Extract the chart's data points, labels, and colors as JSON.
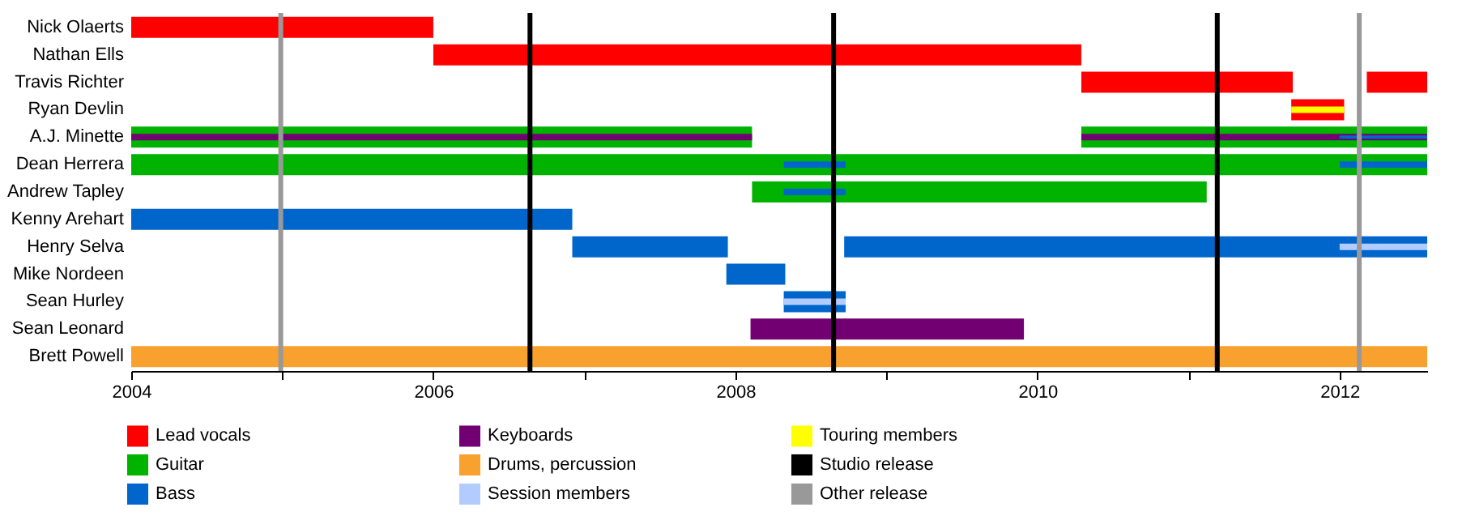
{
  "chart_data": {
    "type": "bar",
    "orientation": "horizontal",
    "categories": [
      "Nick Olaerts",
      "Nathan Ells",
      "Travis Richter",
      "Ryan Devlin",
      "A.J. Minette",
      "Dean Herrera",
      "Andrew Tapley",
      "Kenny Arehart",
      "Henry Selva",
      "Mike Nordeen",
      "Sean Hurley",
      "Sean Leonard",
      "Brett Powell"
    ],
    "series": [
      {
        "name": "Lead vocals",
        "color": "#ff0000",
        "base": [
          2004,
          2006.0,
          2010.29,
          2011.68,
          null,
          null,
          null,
          null,
          null,
          null,
          null,
          null,
          null
        ],
        "values": [
          2.0,
          4.29,
          1.4,
          0.35,
          null,
          null,
          null,
          null,
          null,
          null,
          null,
          null,
          null
        ]
      },
      {
        "color": "#ff0000",
        "base": [
          null,
          null,
          2012.18,
          null,
          null,
          null,
          null,
          null,
          null,
          null,
          null,
          null,
          null
        ],
        "values": [
          null,
          null,
          0.4,
          null,
          null,
          null,
          null,
          null,
          null,
          null,
          null,
          null,
          null
        ]
      },
      {
        "name": "Guitar",
        "color": "#00b300",
        "base": [
          null,
          null,
          null,
          null,
          2004,
          2004,
          2008.11,
          null,
          null,
          null,
          null,
          null,
          null
        ],
        "values": [
          null,
          null,
          null,
          null,
          4.11,
          8.58,
          3.01,
          null,
          null,
          null,
          null,
          null,
          null
        ]
      },
      {
        "color": "#00b300",
        "base": [
          null,
          null,
          null,
          null,
          2010.29,
          null,
          null,
          null,
          null,
          null,
          null,
          null,
          null
        ],
        "values": [
          null,
          null,
          null,
          null,
          2.29,
          null,
          null,
          null,
          null,
          null,
          null,
          null,
          null
        ]
      },
      {
        "name": "Bass",
        "color": "#0066cc",
        "base": [
          null,
          null,
          null,
          null,
          null,
          2008.32,
          2008.32,
          2004,
          2006.92,
          2007.94,
          2008.32,
          null,
          null
        ],
        "values": [
          null,
          null,
          null,
          null,
          null,
          0.41,
          0.41,
          2.92,
          1.03,
          0.39,
          0.41,
          null,
          null
        ]
      },
      {
        "color": "#0066cc",
        "base": [
          null,
          null,
          null,
          null,
          2012.0,
          2012.0,
          null,
          null,
          2008.72,
          null,
          null,
          null,
          null
        ],
        "values": [
          null,
          null,
          null,
          null,
          0.58,
          0.58,
          null,
          null,
          3.86,
          null,
          null,
          null,
          null
        ]
      },
      {
        "name": "Keyboards",
        "color": "#730073",
        "base": [
          null,
          null,
          null,
          null,
          2004,
          null,
          null,
          null,
          null,
          null,
          null,
          2008.1,
          null
        ],
        "values": [
          null,
          null,
          null,
          null,
          4.11,
          null,
          null,
          null,
          null,
          null,
          null,
          1.81,
          null
        ]
      },
      {
        "color": "#730073",
        "base": [
          null,
          null,
          null,
          null,
          2010.29,
          null,
          null,
          null,
          null,
          null,
          null,
          null,
          null
        ],
        "values": [
          null,
          null,
          null,
          null,
          2.29,
          null,
          null,
          null,
          null,
          null,
          null,
          null,
          null
        ]
      },
      {
        "name": "Drums, percussion",
        "color": "#f9a12e",
        "base": [
          null,
          null,
          null,
          null,
          null,
          null,
          null,
          null,
          null,
          null,
          null,
          null,
          2004
        ],
        "values": [
          null,
          null,
          null,
          null,
          null,
          null,
          null,
          null,
          null,
          null,
          null,
          null,
          8.58
        ]
      },
      {
        "name": "Session members",
        "color": "#b3ccff",
        "base": [
          null,
          null,
          null,
          null,
          null,
          null,
          null,
          null,
          2012.0,
          null,
          2008.32,
          null,
          null
        ],
        "values": [
          null,
          null,
          null,
          null,
          null,
          null,
          null,
          null,
          0.58,
          null,
          0.41,
          null,
          null
        ]
      },
      {
        "name": "Touring members",
        "color": "#ffff00",
        "base": [
          null,
          null,
          null,
          2011.68,
          null,
          null,
          null,
          null,
          null,
          null,
          null,
          null,
          null
        ],
        "values": [
          null,
          null,
          null,
          0.35,
          null,
          null,
          null,
          null,
          null,
          null,
          null,
          null,
          null
        ]
      }
    ],
    "ref_lines": [
      {
        "axis": "x",
        "value": 2006.64,
        "label": "Studio release",
        "color": "#000000"
      },
      {
        "axis": "x",
        "value": 2008.65,
        "color": "#000000"
      },
      {
        "axis": "x",
        "value": 2011.19,
        "color": "#000000"
      },
      {
        "axis": "x",
        "value": 2004.99,
        "label": "Other release",
        "color": "#999999"
      },
      {
        "axis": "x",
        "value": 2012.13,
        "color": "#999999"
      }
    ],
    "xlim": [
      2004,
      2012.58
    ],
    "xticks": [
      2004,
      {
        "value": 2005,
        "label": null
      },
      2006,
      {
        "value": 2007,
        "label": null
      },
      2008,
      {
        "value": 2009,
        "label": null
      },
      2010,
      {
        "value": 2011,
        "label": null
      },
      2012
    ],
    "grid": false,
    "legend": "bottom"
  }
}
